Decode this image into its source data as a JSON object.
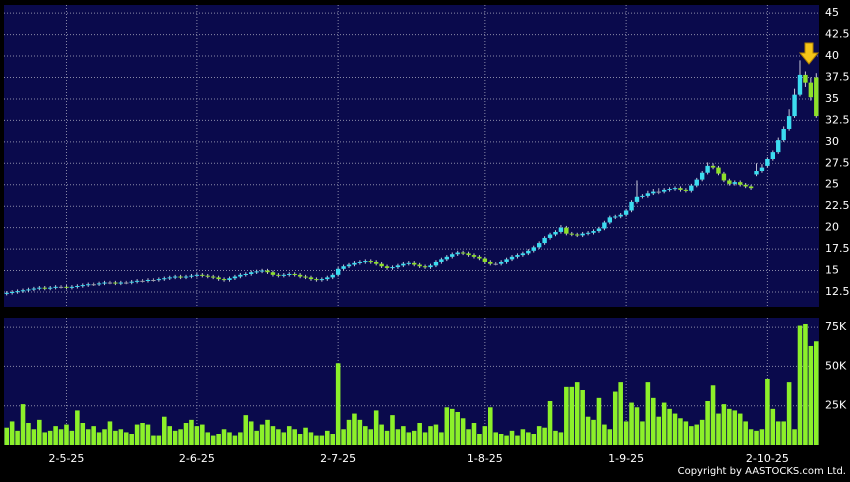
{
  "chart_data": [
    {
      "type": "candlestick",
      "categories": [
        null,
        null,
        null,
        null,
        null,
        null,
        null,
        null,
        null,
        null,
        null,
        "2-5-25",
        null,
        null,
        null,
        null,
        null,
        null,
        null,
        null,
        null,
        null,
        null,
        null,
        null,
        null,
        null,
        null,
        null,
        null,
        null,
        null,
        null,
        null,
        null,
        "2-6-25",
        null,
        null,
        null,
        null,
        null,
        null,
        null,
        null,
        null,
        null,
        null,
        null,
        null,
        null,
        null,
        null,
        null,
        null,
        null,
        null,
        null,
        null,
        null,
        null,
        null,
        "2-7-25",
        null,
        null,
        null,
        null,
        null,
        null,
        null,
        null,
        null,
        null,
        null,
        null,
        null,
        null,
        null,
        null,
        null,
        null,
        null,
        null,
        null,
        null,
        null,
        null,
        null,
        null,
        "1-8-25",
        null,
        null,
        null,
        null,
        null,
        null,
        null,
        null,
        null,
        null,
        null,
        null,
        null,
        null,
        null,
        null,
        null,
        null,
        null,
        null,
        null,
        null,
        null,
        null,
        null,
        "1-9-25",
        null,
        null,
        null,
        null,
        null,
        null,
        null,
        null,
        null,
        null,
        null,
        null,
        null,
        null,
        null,
        null,
        null,
        null,
        null,
        null,
        null,
        null,
        null,
        null,
        null,
        "2-10-25",
        null,
        null,
        null,
        null,
        null,
        null,
        null,
        null,
        null
      ],
      "open": [
        12.3,
        12.4,
        12.5,
        12.6,
        12.7,
        12.8,
        12.9,
        13.0,
        12.9,
        13.0,
        13.1,
        13.1,
        13.0,
        13.1,
        13.2,
        13.3,
        13.4,
        13.4,
        13.5,
        13.6,
        13.6,
        13.5,
        13.6,
        13.6,
        13.7,
        13.8,
        13.8,
        13.9,
        13.9,
        14.0,
        14.1,
        14.2,
        14.3,
        14.2,
        14.3,
        14.4,
        14.5,
        14.4,
        14.3,
        14.2,
        14.0,
        13.9,
        14.1,
        14.3,
        14.5,
        14.6,
        14.8,
        14.9,
        15.0,
        14.8,
        14.5,
        14.4,
        14.5,
        14.6,
        14.5,
        14.3,
        14.2,
        14.0,
        13.9,
        14.0,
        14.2,
        14.5,
        15.2,
        15.5,
        15.7,
        15.9,
        16.0,
        16.1,
        16.0,
        15.8,
        15.5,
        15.3,
        15.4,
        15.6,
        15.8,
        15.9,
        15.7,
        15.5,
        15.4,
        15.6,
        16.0,
        16.3,
        16.6,
        16.9,
        17.1,
        17.0,
        16.8,
        16.6,
        16.4,
        16.0,
        15.8,
        15.8,
        16.0,
        16.3,
        16.6,
        16.8,
        17.0,
        17.3,
        17.7,
        18.2,
        18.8,
        19.2,
        19.5,
        20.0,
        19.3,
        19.2,
        19.1,
        19.3,
        19.4,
        19.6,
        19.9,
        20.6,
        21.2,
        21.3,
        21.5,
        22.0,
        23.0,
        23.6,
        23.7,
        24.0,
        24.2,
        24.2,
        24.4,
        24.5,
        24.6,
        24.4,
        24.3,
        24.9,
        25.6,
        26.4,
        27.2,
        27.0,
        26.3,
        25.5,
        25.1,
        25.3,
        25.0,
        24.8,
        26.2,
        26.6,
        27.2,
        28.0,
        28.8,
        30.2,
        31.5,
        33.0,
        35.5,
        37.8,
        36.9,
        37.5
      ],
      "high": [
        12.6,
        12.7,
        12.8,
        12.9,
        13.0,
        13.1,
        13.2,
        13.2,
        13.2,
        13.3,
        13.3,
        13.3,
        13.3,
        13.4,
        13.5,
        13.6,
        13.6,
        13.7,
        13.8,
        13.8,
        13.8,
        13.8,
        13.8,
        13.9,
        14.0,
        14.0,
        14.1,
        14.1,
        14.2,
        14.3,
        14.4,
        14.5,
        14.5,
        14.5,
        14.6,
        14.7,
        14.7,
        14.6,
        14.5,
        14.4,
        14.2,
        14.3,
        14.5,
        14.7,
        14.8,
        15.0,
        15.1,
        15.2,
        15.2,
        15.0,
        14.7,
        14.7,
        14.8,
        14.8,
        14.7,
        14.5,
        14.4,
        14.2,
        14.2,
        14.4,
        14.7,
        15.4,
        15.7,
        15.9,
        16.1,
        16.2,
        16.3,
        16.3,
        16.2,
        16.0,
        15.7,
        15.6,
        15.8,
        16.0,
        16.1,
        16.1,
        15.9,
        15.7,
        15.8,
        16.2,
        16.5,
        16.8,
        17.1,
        17.3,
        17.3,
        17.2,
        17.0,
        16.8,
        16.6,
        16.2,
        16.0,
        16.2,
        16.5,
        16.8,
        17.0,
        17.2,
        17.5,
        17.9,
        18.4,
        19.0,
        19.4,
        19.7,
        20.3,
        20.2,
        19.5,
        19.4,
        19.5,
        19.6,
        19.8,
        20.1,
        20.8,
        21.4,
        21.5,
        21.7,
        22.2,
        23.2,
        25.5,
        23.9,
        24.3,
        24.5,
        24.6,
        24.6,
        24.7,
        24.8,
        24.8,
        24.6,
        25.1,
        25.8,
        26.6,
        27.6,
        27.5,
        27.2,
        26.5,
        25.7,
        25.5,
        25.5,
        25.2,
        25.0,
        27.5,
        27.4,
        28.2,
        29.0,
        30.5,
        31.8,
        33.8,
        36.2,
        39.5,
        38.2,
        37.5,
        38.0
      ],
      "low": [
        12.1,
        12.2,
        12.3,
        12.4,
        12.5,
        12.6,
        12.7,
        12.7,
        12.7,
        12.8,
        12.9,
        12.8,
        12.8,
        12.9,
        13.0,
        13.1,
        13.2,
        13.2,
        13.3,
        13.4,
        13.3,
        13.3,
        13.4,
        13.4,
        13.5,
        13.6,
        13.6,
        13.7,
        13.7,
        13.8,
        13.9,
        14.0,
        14.0,
        14.0,
        14.1,
        14.2,
        14.2,
        14.1,
        14.0,
        13.8,
        13.7,
        13.7,
        13.9,
        14.1,
        14.3,
        14.4,
        14.6,
        14.7,
        14.6,
        14.3,
        14.2,
        14.2,
        14.3,
        14.3,
        14.1,
        14.0,
        13.8,
        13.7,
        13.7,
        13.8,
        14.0,
        14.3,
        15.0,
        15.3,
        15.5,
        15.7,
        15.8,
        15.8,
        15.6,
        15.3,
        15.1,
        15.1,
        15.2,
        15.4,
        15.6,
        15.5,
        15.3,
        15.2,
        15.2,
        15.4,
        15.8,
        16.1,
        16.4,
        16.7,
        16.8,
        16.6,
        16.4,
        16.2,
        15.8,
        15.6,
        15.6,
        15.6,
        15.8,
        16.1,
        16.4,
        16.6,
        16.8,
        17.1,
        17.5,
        18.0,
        18.6,
        19.0,
        19.3,
        19.1,
        19.0,
        18.9,
        18.9,
        19.1,
        19.2,
        19.4,
        19.7,
        20.4,
        21.0,
        21.1,
        21.3,
        21.8,
        22.8,
        23.4,
        23.5,
        23.8,
        23.9,
        24.0,
        24.2,
        24.3,
        24.2,
        24.1,
        24.1,
        24.7,
        25.4,
        26.2,
        26.8,
        26.1,
        25.3,
        24.9,
        24.9,
        24.8,
        24.6,
        24.4,
        26.0,
        26.4,
        27.0,
        27.8,
        28.6,
        30.0,
        31.3,
        32.8,
        35.3,
        36.4,
        34.8,
        32.8
      ],
      "close": [
        12.4,
        12.5,
        12.6,
        12.7,
        12.8,
        12.9,
        13.0,
        12.9,
        13.0,
        13.1,
        13.1,
        13.0,
        13.1,
        13.2,
        13.3,
        13.4,
        13.4,
        13.5,
        13.6,
        13.6,
        13.5,
        13.6,
        13.6,
        13.7,
        13.8,
        13.8,
        13.9,
        13.9,
        14.0,
        14.1,
        14.2,
        14.3,
        14.2,
        14.3,
        14.4,
        14.5,
        14.4,
        14.3,
        14.2,
        14.0,
        13.9,
        14.1,
        14.3,
        14.5,
        14.6,
        14.8,
        14.9,
        15.0,
        14.8,
        14.5,
        14.4,
        14.5,
        14.6,
        14.5,
        14.3,
        14.2,
        14.0,
        13.9,
        14.0,
        14.2,
        14.5,
        15.2,
        15.5,
        15.7,
        15.9,
        16.0,
        16.1,
        16.0,
        15.8,
        15.5,
        15.3,
        15.4,
        15.6,
        15.8,
        15.9,
        15.7,
        15.5,
        15.4,
        15.6,
        16.0,
        16.3,
        16.6,
        16.9,
        17.1,
        17.0,
        16.8,
        16.6,
        16.4,
        16.0,
        15.8,
        15.8,
        16.0,
        16.3,
        16.6,
        16.8,
        17.0,
        17.3,
        17.7,
        18.2,
        18.8,
        19.2,
        19.5,
        20.0,
        19.3,
        19.2,
        19.1,
        19.3,
        19.4,
        19.6,
        19.9,
        20.6,
        21.2,
        21.3,
        21.5,
        22.0,
        23.0,
        23.6,
        23.7,
        24.0,
        24.2,
        24.2,
        24.4,
        24.5,
        24.6,
        24.4,
        24.3,
        24.9,
        25.6,
        26.4,
        27.2,
        27.0,
        26.3,
        25.5,
        25.1,
        25.3,
        25.0,
        24.8,
        24.6,
        26.6,
        27.0,
        28.0,
        28.8,
        30.2,
        31.5,
        33.0,
        35.5,
        37.8,
        36.9,
        35.2,
        33.0
      ],
      "up_color": "#3cdcf0",
      "down_color": "#8ee02a",
      "flat_color": "#a0a0b0",
      "ylim": [
        10.75,
        45.95
      ],
      "yticks": [
        12.5,
        15,
        17.5,
        20,
        22.5,
        25,
        27.5,
        30,
        32.5,
        35,
        37.5,
        40,
        42.5,
        45
      ],
      "grid": true
    },
    {
      "type": "bar",
      "values": [
        11000,
        15000,
        9000,
        26000,
        14000,
        10000,
        16000,
        8000,
        9000,
        12000,
        10000,
        13000,
        9000,
        22000,
        14000,
        10000,
        12000,
        8000,
        10000,
        15000,
        9000,
        10000,
        8000,
        7000,
        13000,
        14000,
        13000,
        6000,
        6000,
        18000,
        12000,
        9000,
        10000,
        14000,
        16000,
        12000,
        13000,
        8000,
        6000,
        7000,
        10000,
        8000,
        6000,
        8000,
        19000,
        15000,
        9000,
        13000,
        16000,
        12000,
        10000,
        8000,
        12000,
        10000,
        7000,
        11000,
        8000,
        6000,
        6000,
        9000,
        7000,
        52000,
        10000,
        16000,
        20000,
        16000,
        12000,
        10000,
        22000,
        13000,
        9000,
        19000,
        10000,
        12000,
        8000,
        9000,
        14000,
        8000,
        12000,
        13000,
        8000,
        24000,
        23000,
        21000,
        17000,
        10000,
        14000,
        7000,
        12000,
        24000,
        8000,
        7000,
        6000,
        9000,
        6000,
        10000,
        8000,
        7000,
        12000,
        11000,
        28000,
        9000,
        8000,
        37000,
        37000,
        40000,
        35000,
        18000,
        16000,
        30000,
        13000,
        10000,
        34000,
        40000,
        15000,
        27000,
        24000,
        15000,
        40000,
        30000,
        18000,
        27000,
        23000,
        20000,
        17000,
        15000,
        12000,
        13000,
        16000,
        28000,
        38000,
        20000,
        26000,
        23000,
        22000,
        20000,
        15000,
        10000,
        9000,
        10000,
        42000,
        23000,
        15000,
        15000,
        40000,
        10000,
        76000,
        77000,
        63000,
        66000
      ],
      "color": "#8cf02a",
      "ylim": [
        0,
        80800
      ],
      "yticks": [
        {
          "value": 25000,
          "label": "25K"
        },
        {
          "value": 50000,
          "label": "50K"
        },
        {
          "value": 75000,
          "label": "75K"
        }
      ],
      "grid": true
    }
  ],
  "footer": "Copyright by AASTOCKS.com Ltd."
}
